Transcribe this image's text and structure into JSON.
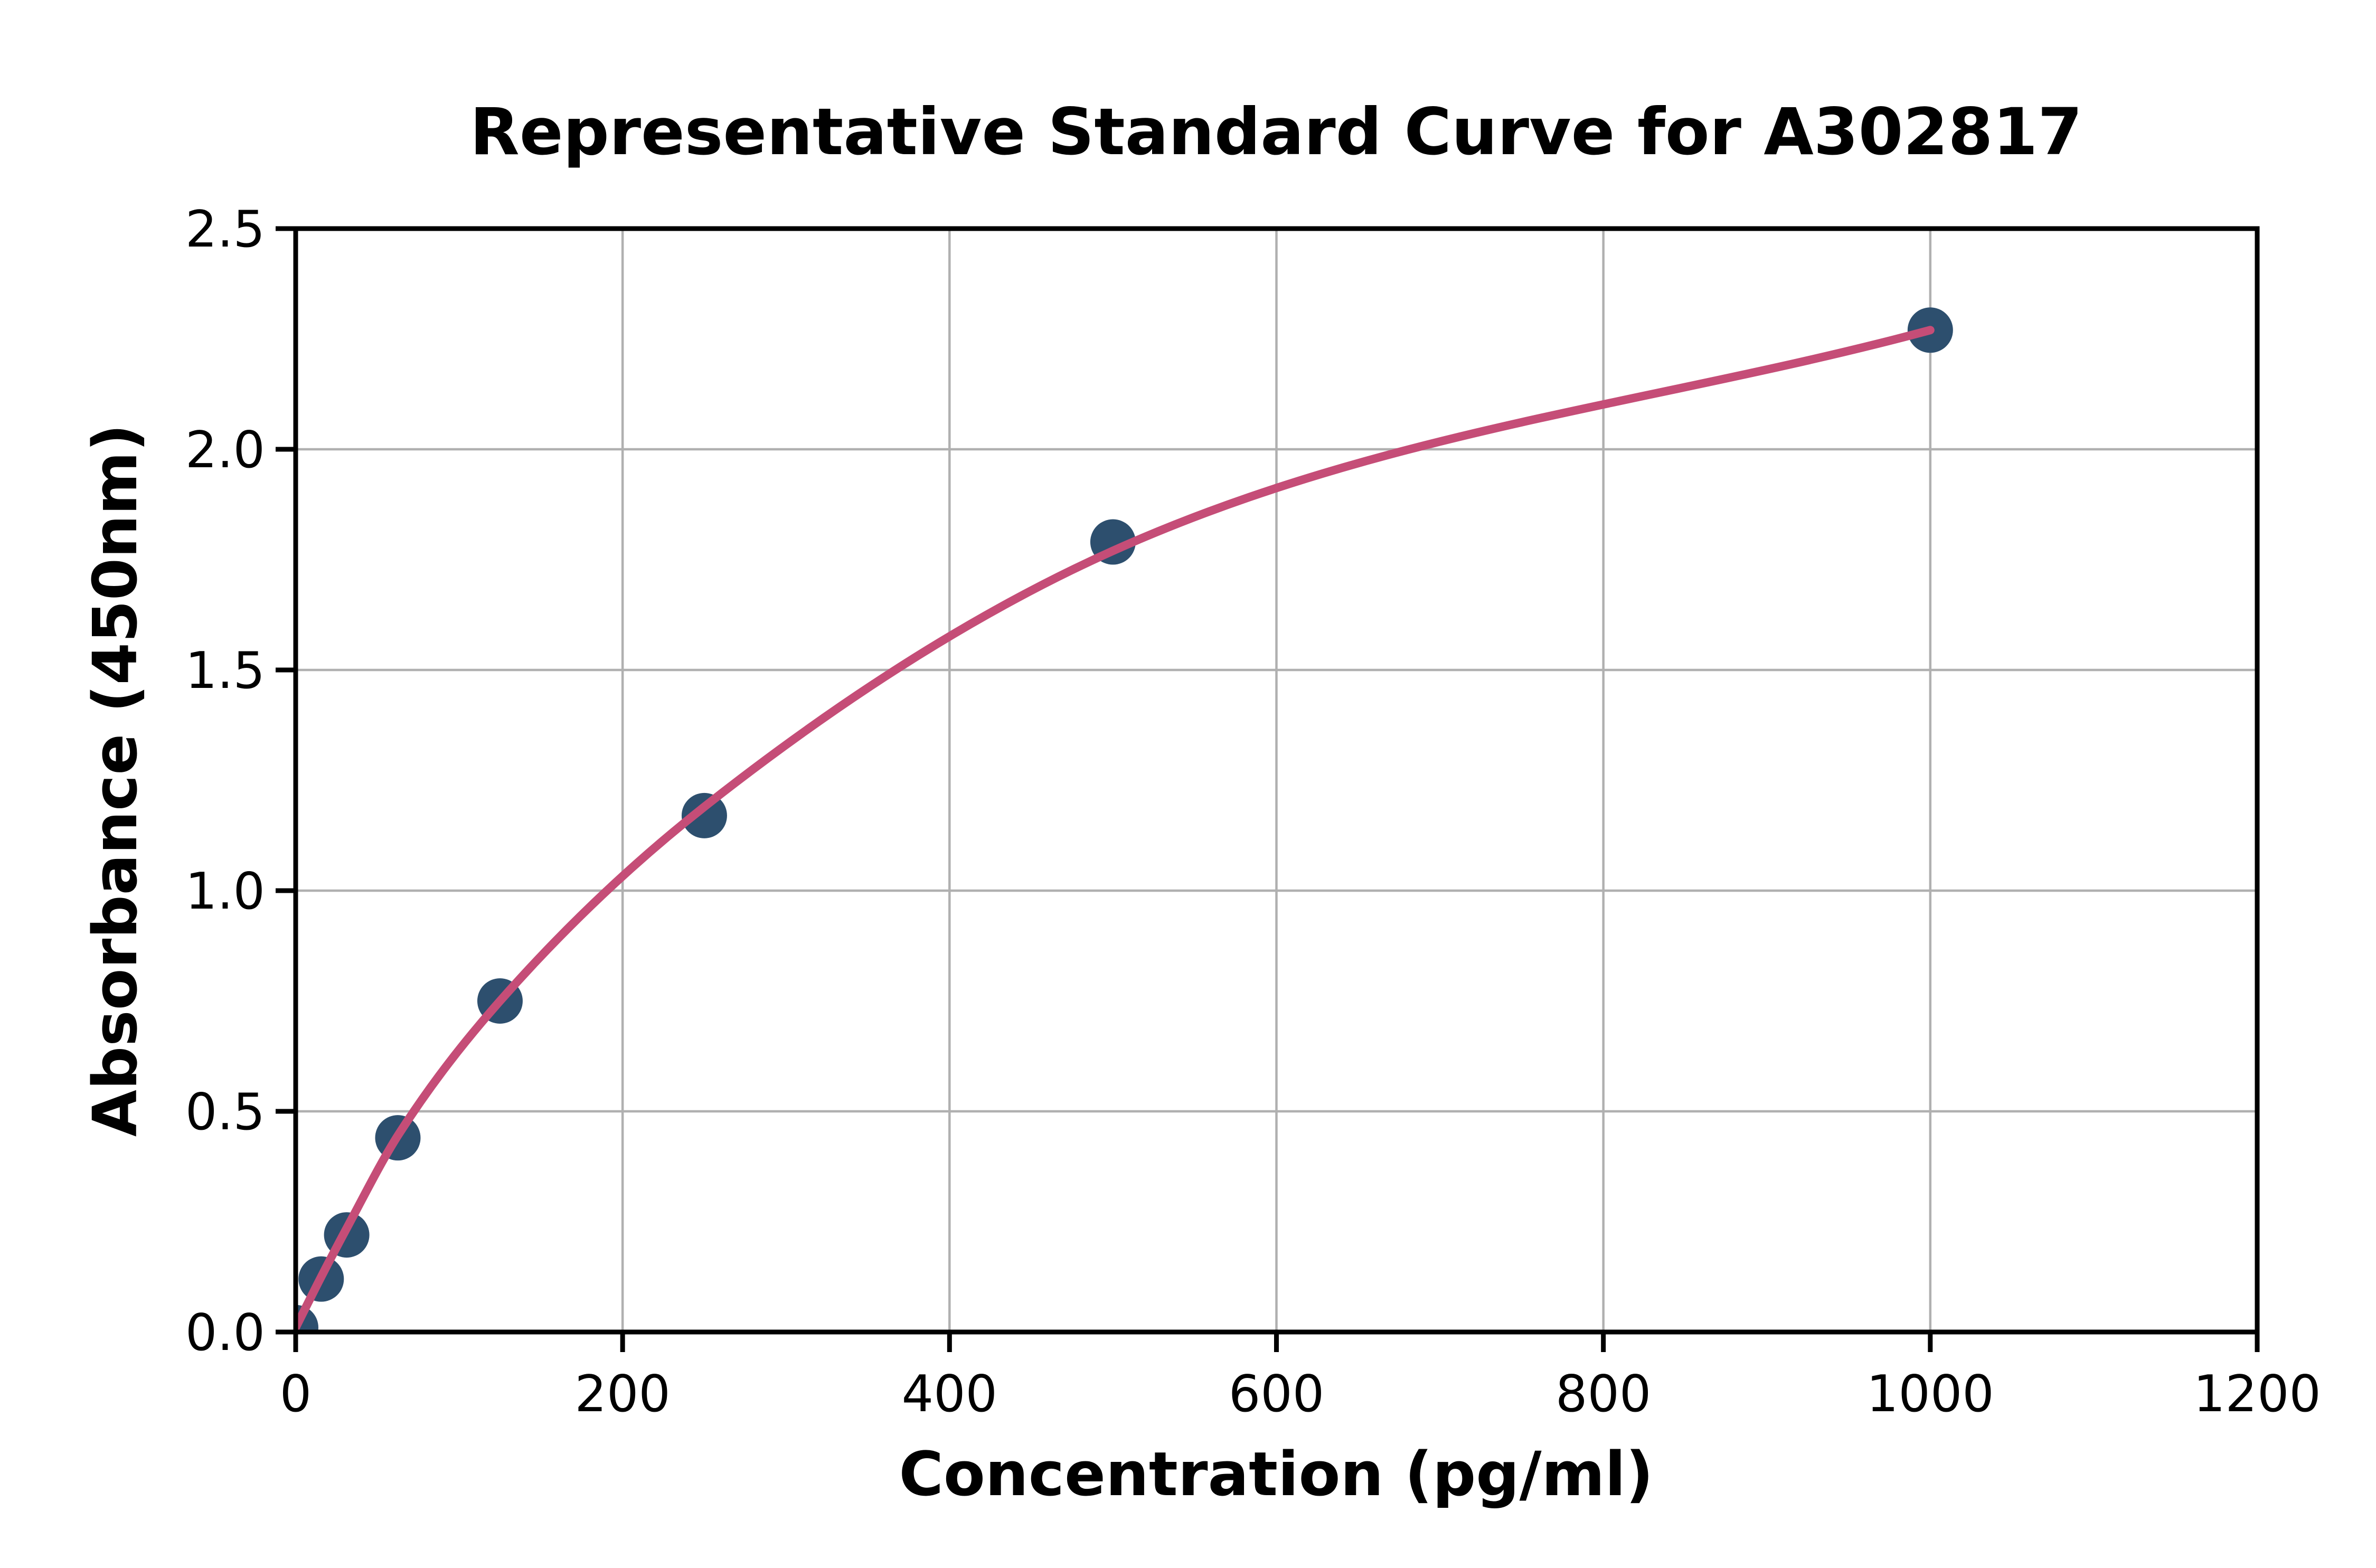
{
  "page": {
    "background_color": "#ffffff",
    "description": "ELISA standard curve plot"
  },
  "chart_data": {
    "type": "scatter",
    "title": "Representative Standard Curve for A302817",
    "xlabel": "Concentration (pg/ml)",
    "ylabel": "Absorbance (450nm)",
    "xlim": [
      0,
      1200
    ],
    "ylim": [
      0.0,
      2.5
    ],
    "x_ticks": [
      0,
      200,
      400,
      600,
      800,
      1000,
      1200
    ],
    "x_tick_labels": [
      "0",
      "200",
      "400",
      "600",
      "800",
      "1000",
      "1200"
    ],
    "y_ticks": [
      0.0,
      0.5,
      1.0,
      1.5,
      2.0,
      2.5
    ],
    "y_tick_labels": [
      "0.0",
      "0.5",
      "1.0",
      "1.5",
      "2.0",
      "2.5"
    ],
    "grid": true,
    "legend": "none",
    "series": [
      {
        "name": "standard-points",
        "type": "scatter",
        "x": [
          0,
          15.6,
          31.2,
          62.5,
          125,
          250,
          500,
          1000
        ],
        "y": [
          0.01,
          0.12,
          0.22,
          0.44,
          0.75,
          1.17,
          1.79,
          2.27
        ]
      },
      {
        "name": "4pl-fit-curve",
        "type": "line",
        "x": [
          0,
          15.6,
          31.2,
          62.5,
          125,
          250,
          500,
          1000
        ],
        "y": [
          0.01,
          0.125,
          0.235,
          0.445,
          0.75,
          1.19,
          1.77,
          2.27
        ]
      }
    ],
    "colors": {
      "marker": "#2d4f6e",
      "curve": "#c54d77",
      "grid": "#b0b0b0",
      "frame": "#000000",
      "text": "#000000",
      "background": "#ffffff"
    }
  }
}
